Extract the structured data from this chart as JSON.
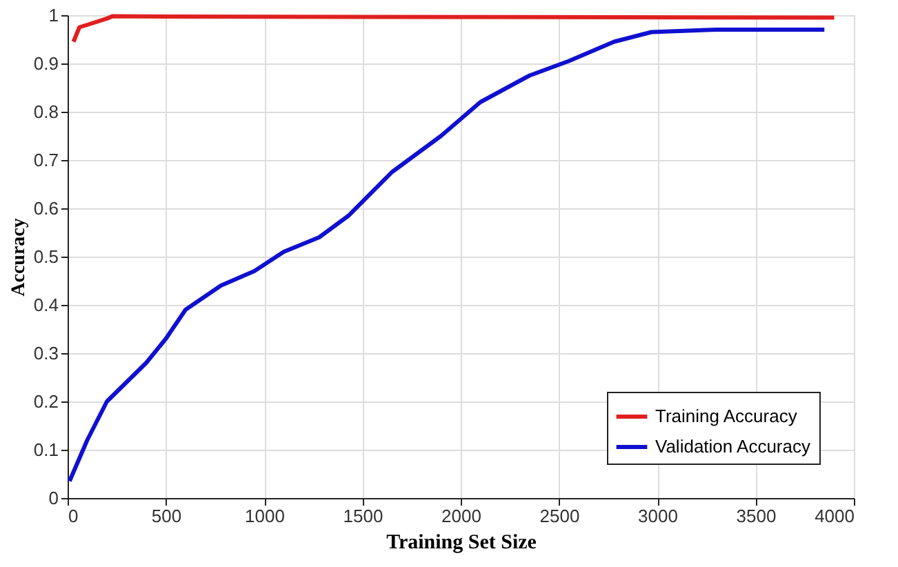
{
  "chart_data": {
    "type": "line",
    "xlabel": "Training Set Size",
    "ylabel": "Accuracy",
    "xlim": [
      0,
      4000
    ],
    "xticks": [
      0,
      500,
      1000,
      1500,
      2000,
      2500,
      3000,
      3500,
      4000
    ],
    "ylim": [
      0,
      1
    ],
    "yticks": [
      0,
      0.1,
      0.2,
      0.3,
      0.4,
      0.5,
      0.6,
      0.7,
      0.8,
      0.9,
      1
    ],
    "grid": true,
    "legend": "bottom right",
    "line_style": "solid",
    "marker": "none",
    "series": [
      {
        "name": "Training Accuracy",
        "color": "#e02020",
        "x": [
          30,
          40,
          60,
          100,
          200,
          230,
          500,
          3900
        ],
        "values": [
          0.945,
          0.955,
          0.975,
          0.98,
          0.993,
          0.998,
          0.997,
          0.995
        ]
      },
      {
        "name": "Validation Accuracy",
        "color": "#1010d0",
        "x": [
          10,
          100,
          200,
          400,
          500,
          600,
          780,
          950,
          1100,
          1280,
          1430,
          1650,
          1900,
          2100,
          2350,
          2550,
          2780,
          2970,
          3300,
          3850
        ],
        "values": [
          0.035,
          0.12,
          0.2,
          0.28,
          0.33,
          0.39,
          0.44,
          0.47,
          0.51,
          0.54,
          0.585,
          0.675,
          0.75,
          0.82,
          0.875,
          0.905,
          0.945,
          0.965,
          0.97,
          0.97
        ]
      }
    ]
  }
}
